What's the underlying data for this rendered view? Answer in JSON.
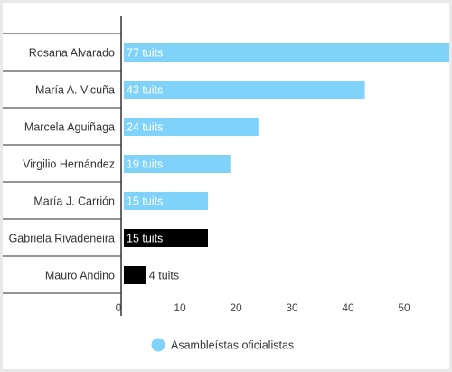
{
  "chart_data": {
    "type": "bar",
    "orientation": "horizontal",
    "categories": [
      "Rosana Alvarado",
      "María A. Vicuña",
      "Marcela Aguiñaga",
      "Virgilio Hernández",
      "María J. Carrión",
      "Gabriela Rivadeneira",
      "Mauro Andino"
    ],
    "values": [
      77,
      43,
      24,
      19,
      15,
      15,
      4
    ],
    "bar_labels": [
      "77 tuits",
      "43 tuits",
      "24 tuits",
      "19 tuits",
      "15 tuits",
      "15 tuits",
      "4 tuits"
    ],
    "bar_colors": [
      "#7fd3fb",
      "#7fd3fb",
      "#7fd3fb",
      "#7fd3fb",
      "#7fd3fb",
      "#000000",
      "#000000"
    ],
    "x_ticks": [
      "0",
      "10",
      "20",
      "30",
      "40",
      "50",
      "60",
      "70"
    ],
    "xlim": [
      0,
      77
    ],
    "legend": [
      {
        "label": "Asambleístas oficialistas",
        "color": "#7fd3fb"
      }
    ],
    "legend_position": "bottom-center",
    "grid": false
  }
}
